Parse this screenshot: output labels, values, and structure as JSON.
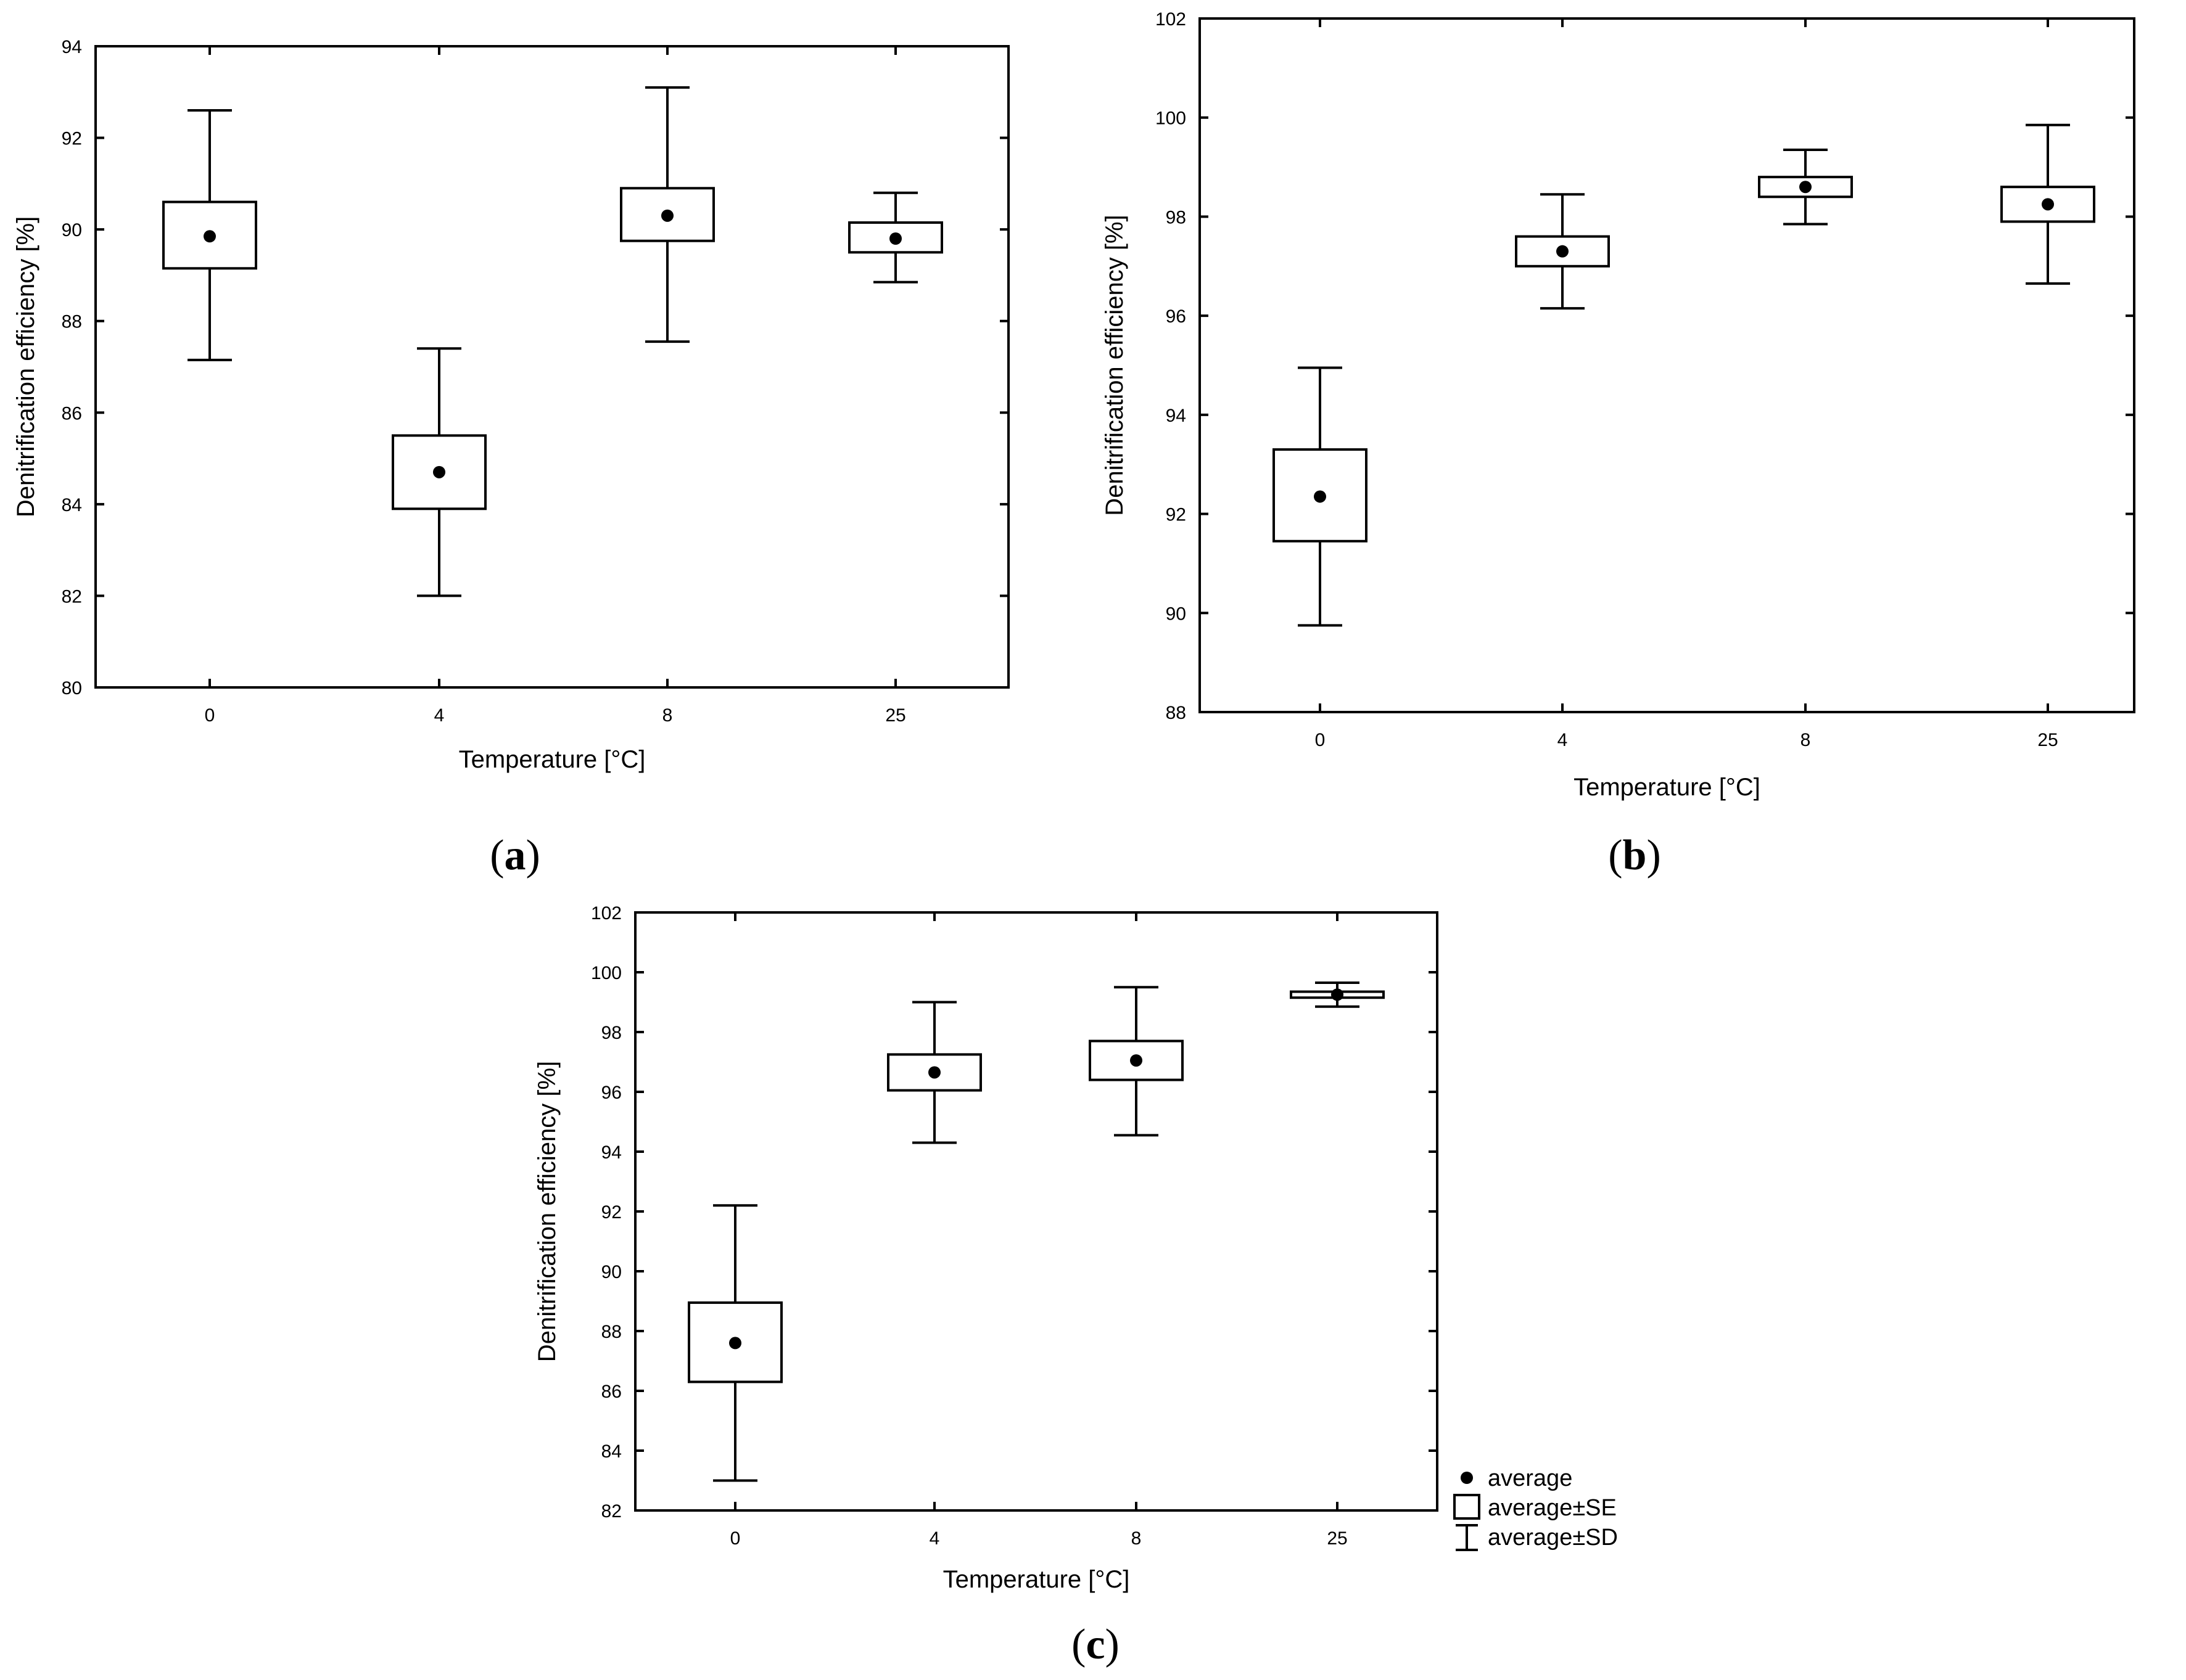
{
  "chart_data": [
    {
      "type": "box",
      "panel_label": "a",
      "xlabel": "Temperature [°C]",
      "ylabel": "Denitrification efficiency [%]",
      "categories": [
        "0",
        "4",
        "8",
        "25"
      ],
      "ylim": [
        80,
        94
      ],
      "yticks": [
        80,
        82,
        84,
        86,
        88,
        90,
        92,
        94
      ],
      "mean": [
        89.85,
        84.7,
        90.3,
        89.8
      ],
      "se_low": [
        89.15,
        83.9,
        89.75,
        89.5
      ],
      "se_high": [
        90.6,
        85.5,
        90.9,
        90.15
      ],
      "sd_low": [
        87.15,
        82.0,
        87.55,
        88.85
      ],
      "sd_high": [
        92.6,
        87.4,
        93.1,
        90.8
      ]
    },
    {
      "type": "box",
      "panel_label": "b",
      "xlabel": "Temperature [°C]",
      "ylabel": "Denitrification efficiency [%]",
      "categories": [
        "0",
        "4",
        "8",
        "25"
      ],
      "ylim": [
        88,
        102
      ],
      "yticks": [
        88,
        90,
        92,
        94,
        96,
        98,
        100,
        102
      ],
      "mean": [
        92.35,
        97.3,
        98.6,
        98.25
      ],
      "se_low": [
        91.45,
        97.0,
        98.4,
        97.9
      ],
      "se_high": [
        93.3,
        97.6,
        98.8,
        98.6
      ],
      "sd_low": [
        89.75,
        96.15,
        97.85,
        96.65
      ],
      "sd_high": [
        94.95,
        98.45,
        99.35,
        99.85
      ]
    },
    {
      "type": "box",
      "panel_label": "c",
      "xlabel": "Temperature [°C]",
      "ylabel": "Denitrification efficiency [%]",
      "categories": [
        "0",
        "4",
        "8",
        "25"
      ],
      "ylim": [
        82,
        102
      ],
      "yticks": [
        82,
        84,
        86,
        88,
        90,
        92,
        94,
        96,
        98,
        100,
        102
      ],
      "mean": [
        87.6,
        96.65,
        97.05,
        99.25
      ],
      "se_low": [
        86.3,
        96.05,
        96.4,
        99.15
      ],
      "se_high": [
        88.95,
        97.25,
        97.7,
        99.35
      ],
      "sd_low": [
        83.0,
        94.3,
        94.55,
        98.85
      ],
      "sd_high": [
        92.2,
        99.0,
        99.5,
        99.65
      ]
    }
  ],
  "legend": {
    "items": [
      {
        "symbol": "dot",
        "label": "average"
      },
      {
        "symbol": "box",
        "label": "average±SE"
      },
      {
        "symbol": "whisker",
        "label": "average±SD"
      }
    ]
  }
}
